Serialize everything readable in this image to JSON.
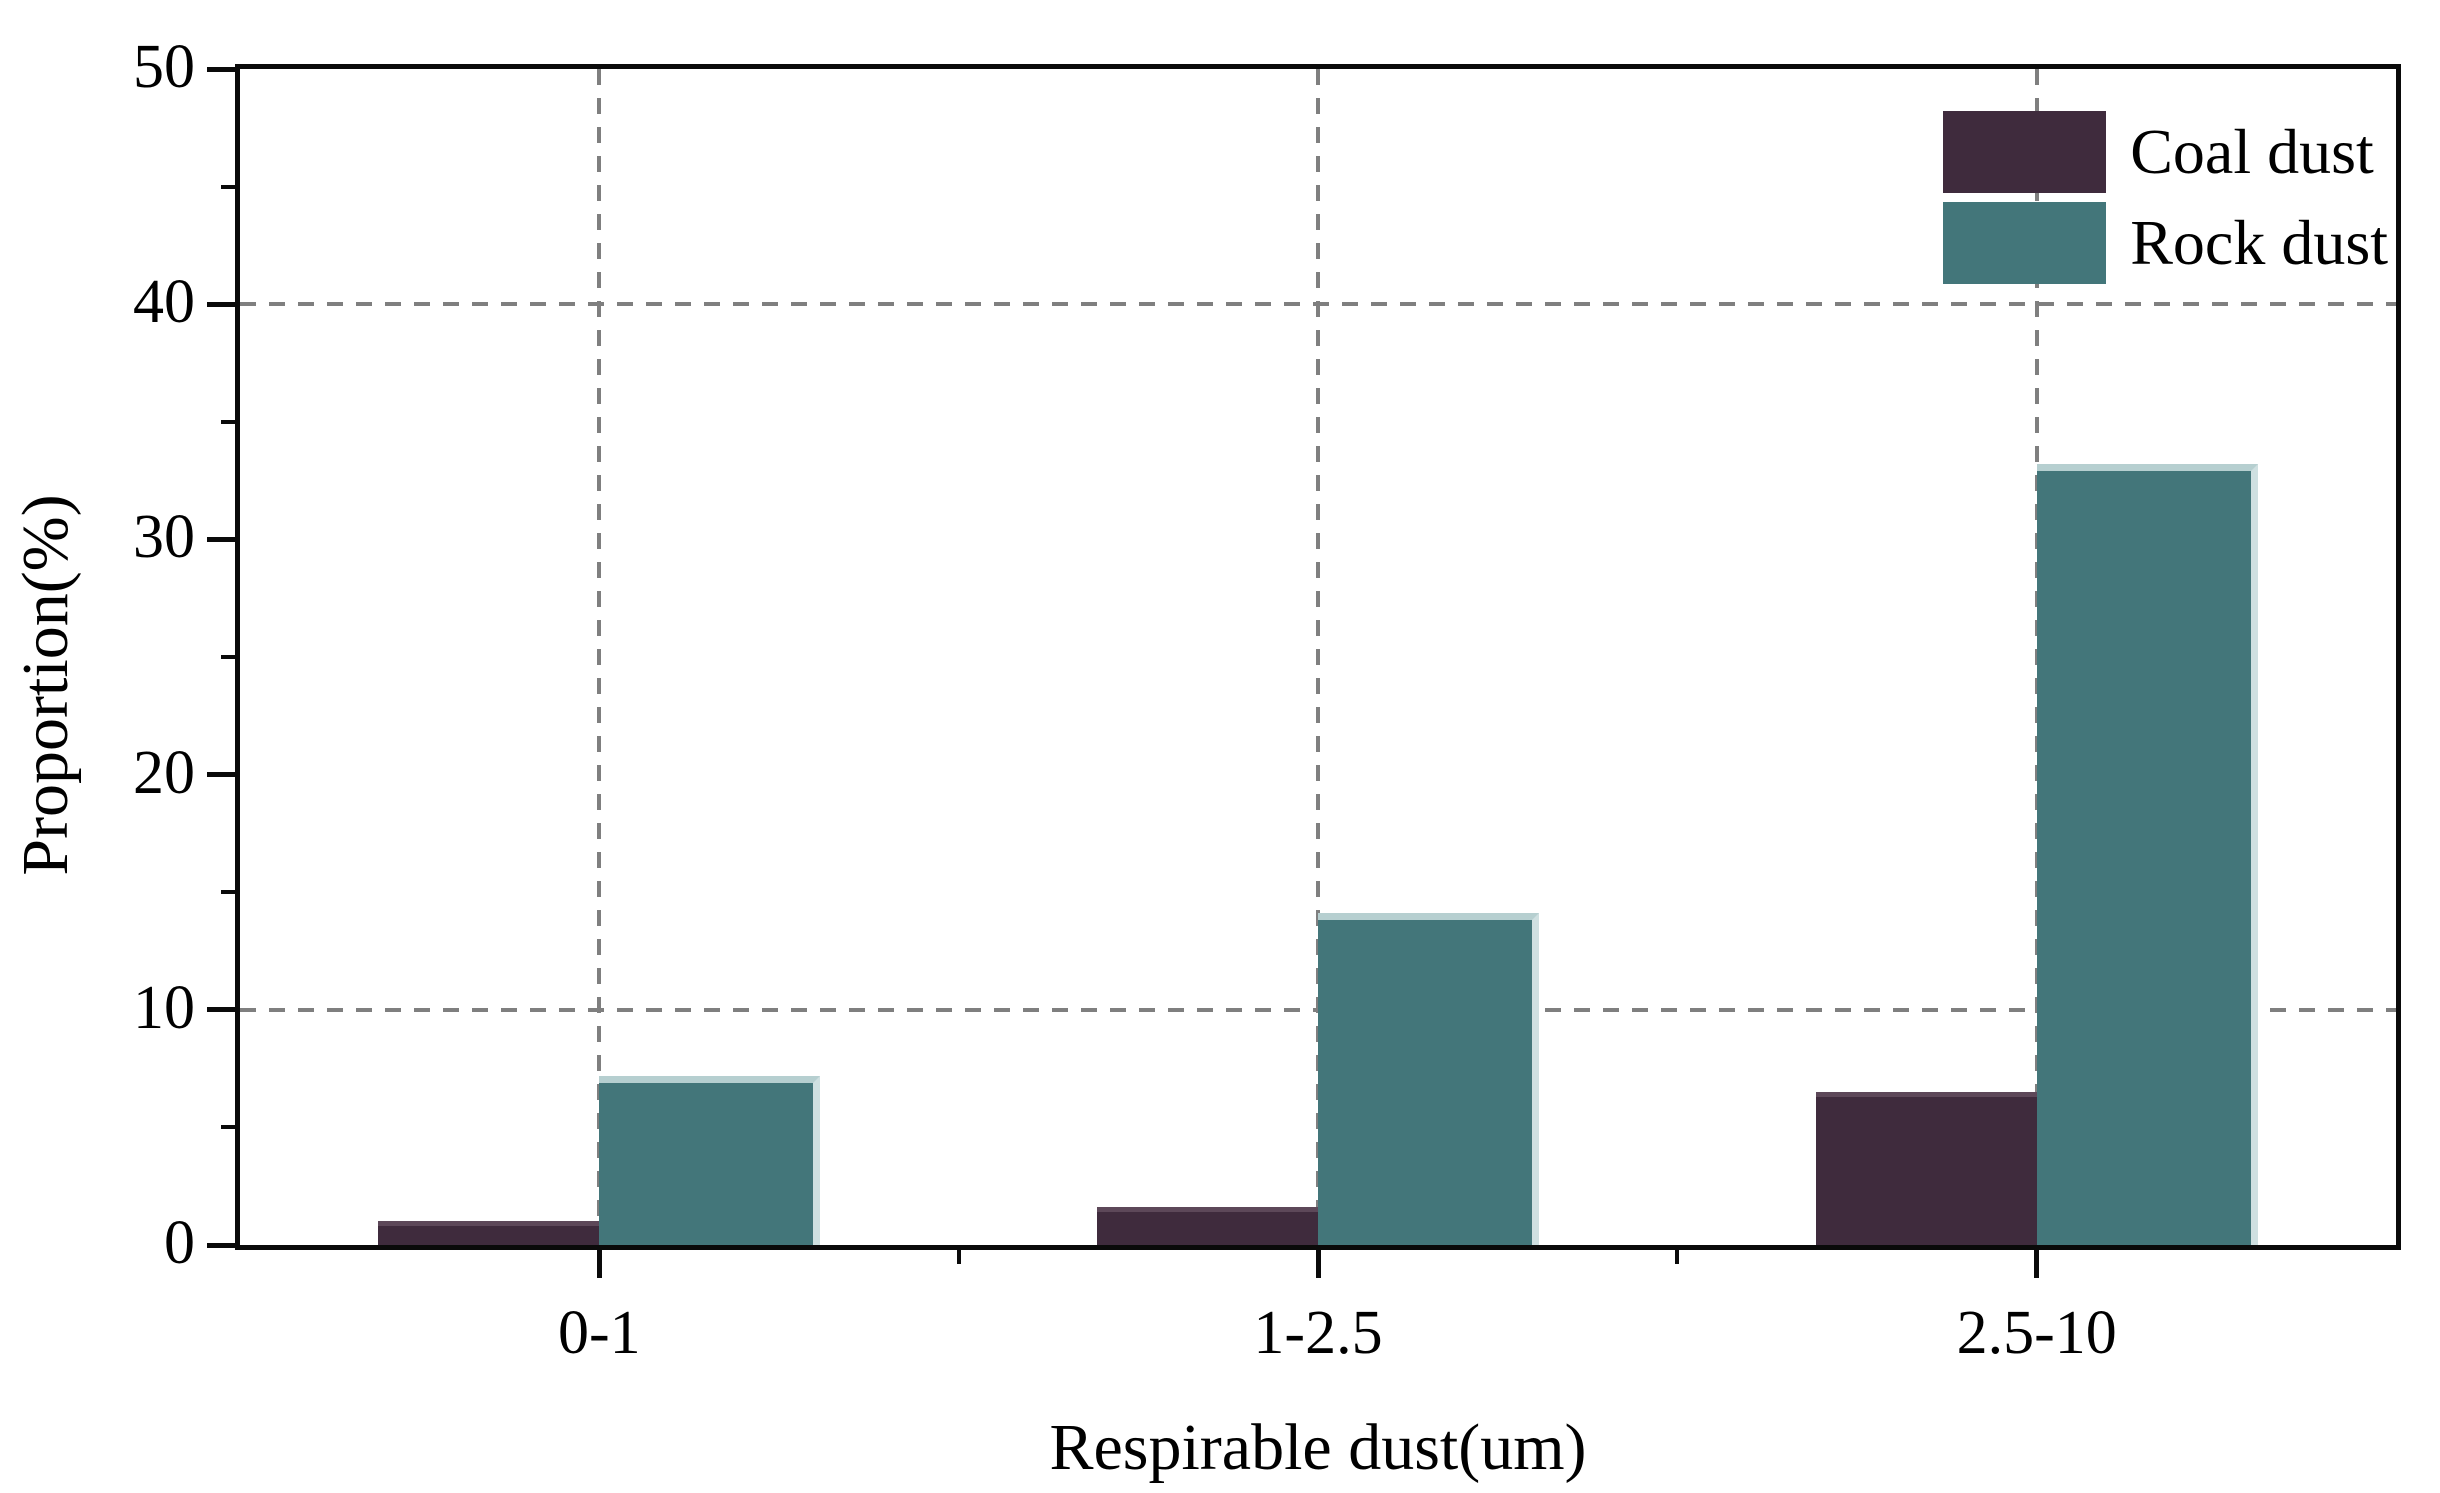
{
  "chart_data": {
    "type": "bar",
    "title": "",
    "categories": [
      "0-1",
      "1-2.5",
      "2.5-10"
    ],
    "series": [
      {
        "name": "Coal dust",
        "color": "#3f2b3d",
        "values": [
          1.0,
          1.6,
          6.5
        ]
      },
      {
        "name": "Rock dust",
        "color": "#43767a",
        "values": [
          7.2,
          14.1,
          33.2
        ]
      }
    ],
    "xlabel": "Respirable dust(um)",
    "ylabel": "Proportion(%)",
    "ylim": [
      0,
      50
    ],
    "yticks_major": [
      0,
      10,
      20,
      30,
      40,
      50
    ],
    "yticks_minor": [
      5,
      15,
      25,
      35,
      45
    ],
    "grid_y_values": [
      10,
      40
    ],
    "grid_x": "category-centers",
    "grid_style": "dashed",
    "grid_color": "#7f7f7f",
    "axis_color": "#0a0a0a",
    "background_color": "#ffffff",
    "legend_position": "top-right",
    "bar_width_fraction_of_plot": 0.1025
  }
}
